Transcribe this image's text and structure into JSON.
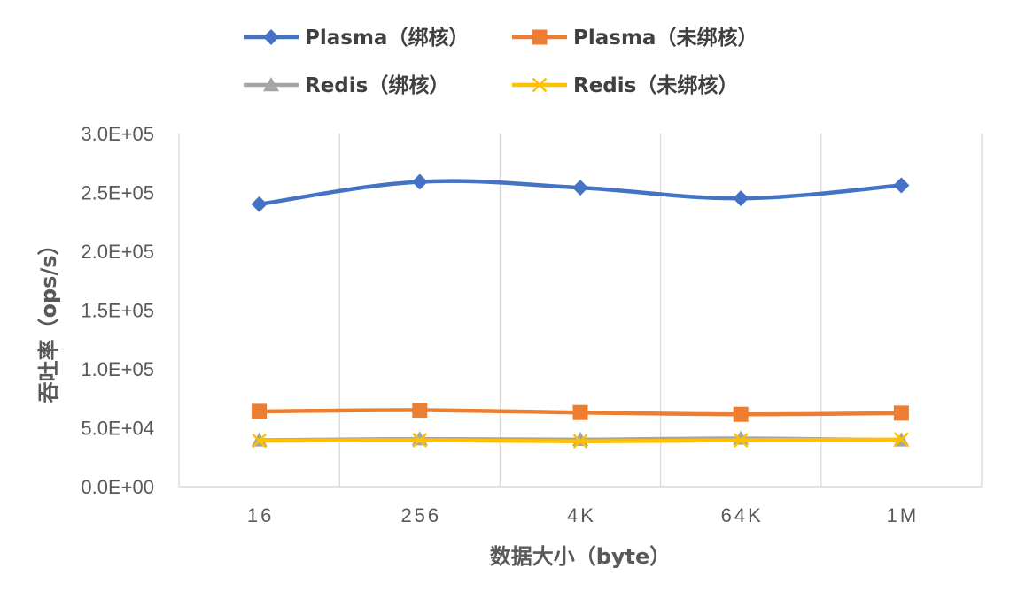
{
  "chart_data": {
    "type": "line",
    "categories": [
      "16",
      "256",
      "4K",
      "64K",
      "1M"
    ],
    "xlabel": "数据大小（byte）",
    "ylabel": "吞吐率（ops/s）",
    "ylim": [
      0,
      300000
    ],
    "y_ticks": [
      0,
      50000,
      100000,
      150000,
      200000,
      250000,
      300000
    ],
    "y_tick_labels": [
      "0.0E+00",
      "5.0E+04",
      "1.0E+05",
      "1.5E+05",
      "2.0E+05",
      "2.5E+05",
      "3.0E+05"
    ],
    "grid": "vertical",
    "legend_position": "top",
    "series": [
      {
        "name": "Plasma（绑核）",
        "marker": "diamond",
        "color": "#4472C4",
        "values": [
          240000,
          259000,
          254000,
          245000,
          256000
        ]
      },
      {
        "name": "Plasma（未绑核）",
        "marker": "square",
        "color": "#ED7D31",
        "values": [
          64000,
          65000,
          63000,
          61500,
          62500
        ]
      },
      {
        "name": "Redis（绑核）",
        "marker": "triangle",
        "color": "#A5A5A5",
        "values": [
          39500,
          40500,
          40000,
          41000,
          39500
        ]
      },
      {
        "name": "Redis（未绑核）",
        "marker": "x",
        "color": "#FFC000",
        "values": [
          39000,
          39500,
          38500,
          39500,
          40000
        ]
      }
    ]
  }
}
